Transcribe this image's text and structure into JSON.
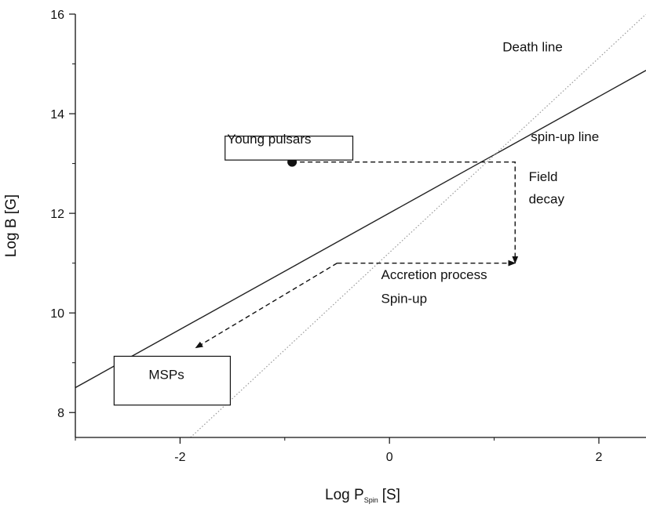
{
  "chart_data": {
    "type": "line",
    "title": "",
    "xlabel": "Log P",
    "xlabel_subscript": "Spin",
    "xlabel_unit": "[S]",
    "ylabel": "Log B [G]",
    "xlim": [
      -3.0,
      2.45
    ],
    "ylim": [
      7.5,
      16.0
    ],
    "x_ticks": [
      "-2",
      "0",
      "2"
    ],
    "x_tick_values": [
      -2,
      0,
      2
    ],
    "y_ticks": [
      "8",
      "10",
      "12",
      "14",
      "16"
    ],
    "y_tick_values": [
      8,
      10,
      12,
      14,
      16
    ],
    "grid": false,
    "series": [
      {
        "name": "spin-up line",
        "style": "solid",
        "x": [
          -3.0,
          2.45
        ],
        "y": [
          8.5,
          14.87
        ]
      },
      {
        "name": "Death line",
        "style": "dotted",
        "x": [
          -1.9,
          2.45
        ],
        "y": [
          7.5,
          16.0
        ]
      }
    ],
    "points": [
      {
        "label": "Young pulsars",
        "x": -0.93,
        "y": 13.03
      }
    ],
    "paths": [
      {
        "style": "dashed",
        "arrow": "end",
        "x": [
          -0.93,
          1.2,
          1.2
        ],
        "y": [
          13.03,
          13.03,
          11.0
        ]
      },
      {
        "style": "dashed",
        "arrow": "end",
        "x": [
          -0.5,
          1.2
        ],
        "y": [
          11.0,
          11.0
        ]
      },
      {
        "style": "dashed",
        "arrow": "end",
        "x": [
          -0.5,
          -1.85
        ],
        "y": [
          11.0,
          9.3
        ]
      }
    ],
    "annotations": [
      {
        "text": "Death line",
        "x": 1.08,
        "y": 15.25
      },
      {
        "text": "spin-up line",
        "x": 1.35,
        "y": 13.45
      },
      {
        "text": "Field",
        "x": 1.33,
        "y": 12.65
      },
      {
        "text": "decay",
        "x": 1.33,
        "y": 12.2
      },
      {
        "text": "Accretion process",
        "x": -0.08,
        "y": 10.68
      },
      {
        "text": "Spin-up",
        "x": -0.08,
        "y": 10.2
      },
      {
        "text": "Young pulsars",
        "x": -1.55,
        "y": 13.4,
        "boxed": true,
        "box_x": [
          -1.57,
          -0.35
        ],
        "box_y": [
          13.55,
          13.07
        ]
      },
      {
        "text": "MSPs",
        "x": -2.3,
        "y": 8.67,
        "boxed": true,
        "box_x": [
          -2.63,
          -1.52
        ],
        "box_y": [
          9.13,
          8.15
        ]
      }
    ],
    "colors": {
      "axes": "#111111",
      "lines": "#222222",
      "dotted": "#9a9a9a"
    }
  }
}
